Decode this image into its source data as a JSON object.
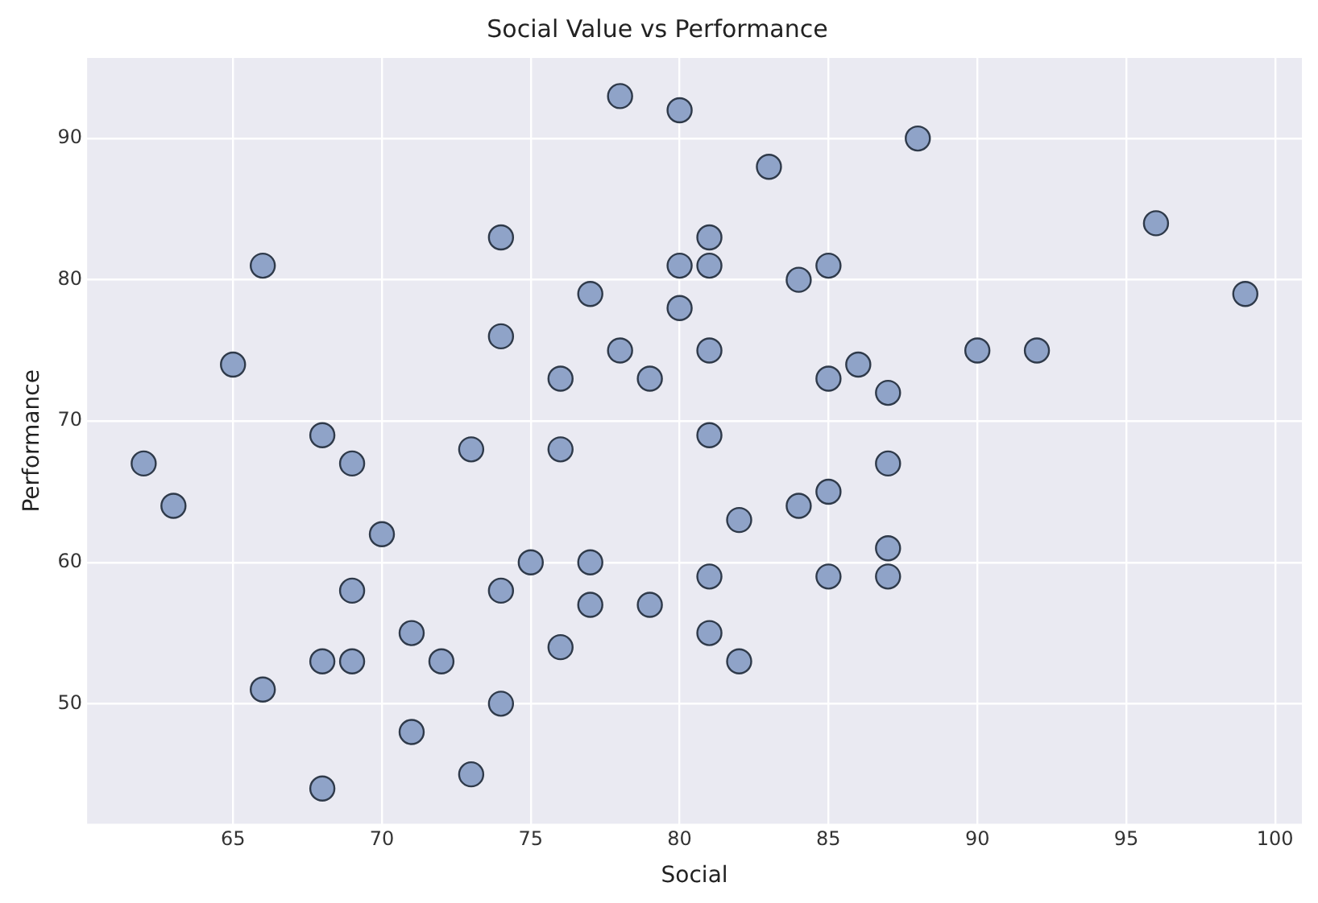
{
  "chart_data": {
    "type": "scatter",
    "title": "Social Value vs Performance",
    "xlabel": "Social",
    "ylabel": "Performance",
    "x": [
      62,
      63,
      65,
      66,
      66,
      68,
      68,
      68,
      69,
      69,
      69,
      70,
      71,
      71,
      72,
      73,
      73,
      74,
      74,
      74,
      74,
      75,
      76,
      76,
      76,
      77,
      77,
      77,
      78,
      78,
      79,
      79,
      80,
      80,
      80,
      81,
      81,
      81,
      81,
      81,
      81,
      82,
      82,
      83,
      84,
      84,
      85,
      85,
      85,
      85,
      86,
      87,
      87,
      87,
      87,
      88,
      90,
      92,
      96,
      99
    ],
    "values": [
      67,
      64,
      74,
      81,
      51,
      69,
      53,
      44,
      67,
      58,
      53,
      62,
      55,
      48,
      53,
      68,
      45,
      83,
      76,
      58,
      50,
      60,
      73,
      68,
      54,
      79,
      60,
      57,
      93,
      75,
      73,
      57,
      92,
      81,
      78,
      83,
      81,
      75,
      69,
      59,
      55,
      63,
      53,
      88,
      80,
      64,
      81,
      73,
      65,
      59,
      74,
      72,
      67,
      61,
      59,
      90,
      75,
      75,
      84,
      79
    ],
    "color": "#8fa3c8",
    "marker": "circle",
    "xlim": [
      60.1,
      100.9
    ],
    "xticks": [
      65,
      70,
      75,
      80,
      85,
      90,
      95,
      100
    ],
    "ylim": [
      41.5,
      95.7
    ],
    "yticks": [
      50,
      60,
      70,
      80,
      90
    ],
    "grid": true
  }
}
